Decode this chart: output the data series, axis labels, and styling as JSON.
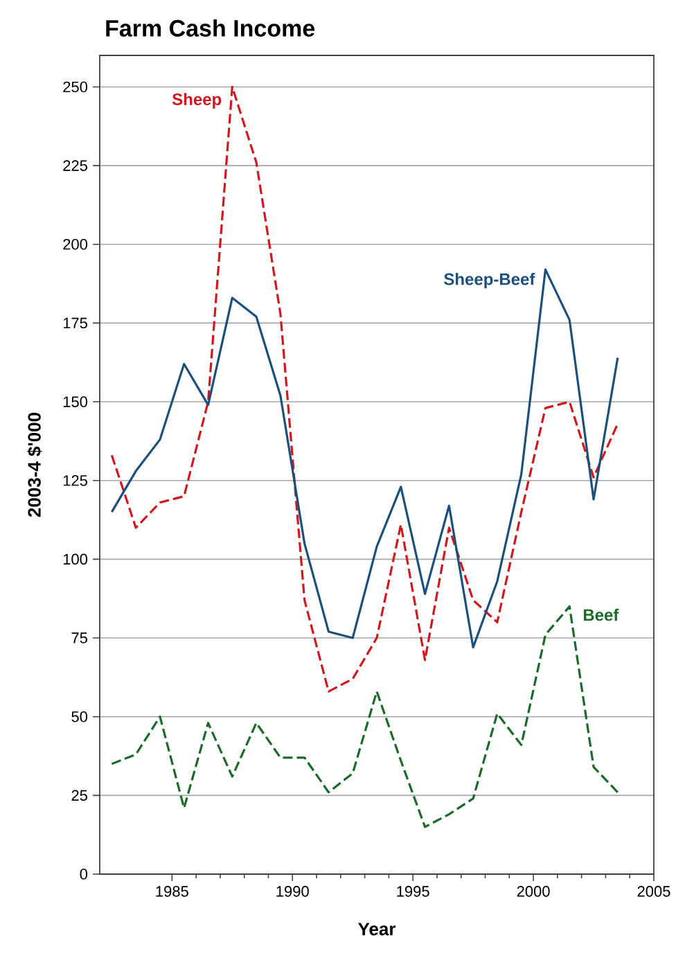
{
  "chart_data": {
    "type": "line",
    "title": "Farm Cash Income",
    "xlabel": "Year",
    "ylabel": "2003-4  $'000",
    "x": [
      1982.5,
      1983.5,
      1984.5,
      1985.5,
      1986.5,
      1987.5,
      1988.5,
      1989.5,
      1990.5,
      1991.5,
      1992.5,
      1993.5,
      1994.5,
      1995.5,
      1996.5,
      1997.5,
      1998.5,
      1999.5,
      2000.5,
      2001.5,
      2002.5,
      2003.5
    ],
    "series": [
      {
        "name": "Sheep",
        "color": "#d0191f",
        "line_style": "dashed",
        "values": [
          133,
          110,
          118,
          120,
          150,
          250,
          226,
          178,
          87,
          58,
          62,
          75,
          111,
          68,
          110,
          87,
          80,
          115,
          148,
          150,
          126,
          143
        ]
      },
      {
        "name": "Sheep-Beef",
        "color": "#1b4f7c",
        "line_style": "solid",
        "values": [
          115,
          128,
          138,
          162,
          149,
          183,
          177,
          152,
          105,
          77,
          75,
          104,
          123,
          89,
          117,
          72,
          93,
          127,
          192,
          176,
          119,
          164
        ]
      },
      {
        "name": "Beef",
        "color": "#1a6b2a",
        "line_style": "dashed",
        "values": [
          35,
          38,
          50,
          21,
          48,
          31,
          48,
          37,
          37,
          26,
          32,
          58,
          36,
          15,
          19,
          24,
          51,
          41,
          76,
          85,
          34,
          26
        ]
      }
    ],
    "xlim": [
      1982,
      2005
    ],
    "xticks": [
      1985,
      1990,
      1995,
      2000,
      2005
    ],
    "ylim": [
      0,
      260
    ],
    "yticks": [
      0,
      25,
      50,
      75,
      100,
      125,
      150,
      175,
      200,
      225,
      250
    ],
    "grid": "y",
    "legend": false,
    "marker": "none"
  }
}
